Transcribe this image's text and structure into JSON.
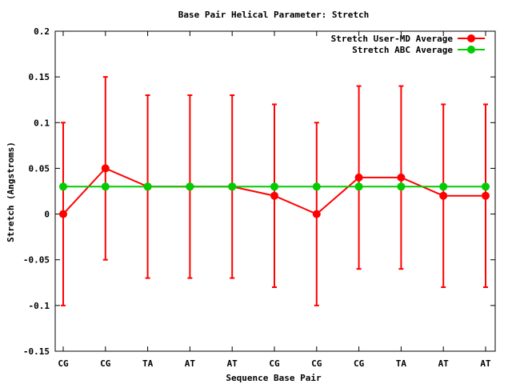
{
  "chart_data": {
    "type": "line",
    "title": "Base Pair Helical Parameter: Stretch",
    "xlabel": "Sequence Base Pair",
    "ylabel": "Stretch (Angstroms)",
    "categories": [
      "CG",
      "CG",
      "TA",
      "AT",
      "AT",
      "CG",
      "CG",
      "CG",
      "TA",
      "AT",
      "AT"
    ],
    "ylim": [
      -0.15,
      0.2
    ],
    "yticks": [
      -0.15,
      -0.1,
      -0.05,
      0,
      0.05,
      0.1,
      0.15,
      0.2
    ],
    "ytick_labels": [
      "-0.15",
      "-0.1",
      "-0.05",
      "0",
      "0.05",
      "0.1",
      "0.15",
      "0.2"
    ],
    "grid": false,
    "legend_position": "top-right",
    "series": [
      {
        "name": "Stretch User-MD Average",
        "color": "#ff0000",
        "values": [
          0.0,
          0.05,
          0.03,
          0.03,
          0.03,
          0.02,
          0.0,
          0.04,
          0.04,
          0.02,
          0.02
        ],
        "error_low": [
          -0.1,
          -0.05,
          -0.07,
          -0.07,
          -0.07,
          -0.08,
          -0.1,
          -0.06,
          -0.06,
          -0.08,
          -0.08
        ],
        "error_high": [
          0.1,
          0.15,
          0.13,
          0.13,
          0.13,
          0.12,
          0.1,
          0.14,
          0.14,
          0.12,
          0.12
        ]
      },
      {
        "name": "Stretch ABC Average",
        "color": "#00cc00",
        "values": [
          0.03,
          0.03,
          0.03,
          0.03,
          0.03,
          0.03,
          0.03,
          0.03,
          0.03,
          0.03,
          0.03
        ]
      }
    ]
  }
}
